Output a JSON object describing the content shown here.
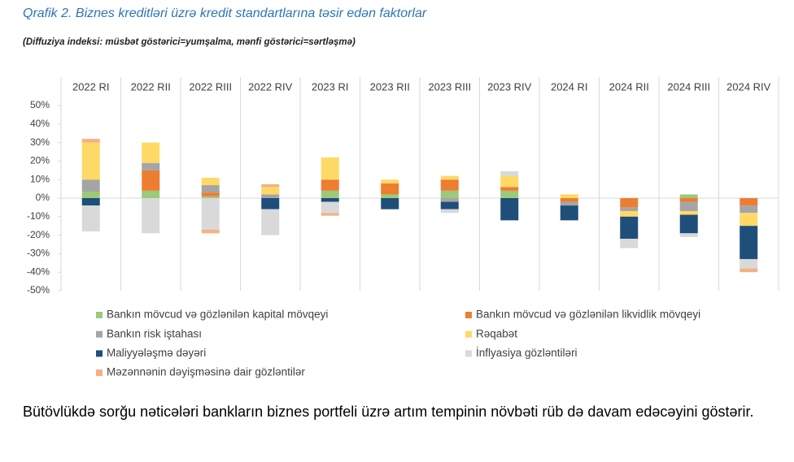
{
  "chart_data": {
    "type": "stacked_bar",
    "title": "Qrafik 2. Biznes kreditləri üzrə kredit standartlarına təsir edən faktorlar",
    "subtitle": "(Diffuziya indeksi: müsbət göstərici=yumşalma, mənfi göstərici=sərtləşmə)",
    "categories": [
      "2022 RI",
      "2022 RII",
      "2022 RIII",
      "2022 RIV",
      "2023 RI",
      "2023 RII",
      "2023 RIII",
      "2023 RIV",
      "2024 RI",
      "2024 RII",
      "2024 RIII",
      "2024 RIV"
    ],
    "series": [
      {
        "name": "Bankın mövcud və gözlənilən kapital mövqeyi",
        "color": "#9dc97b",
        "values": [
          3.5,
          4,
          1,
          0,
          4,
          2,
          4,
          4,
          0,
          0,
          2,
          0
        ]
      },
      {
        "name": "Bankın mövcud və gözlənilən likvidlik mövqeyi",
        "color": "#ed7d31",
        "values": [
          0,
          11,
          2,
          0,
          6,
          6,
          6,
          2,
          -2,
          -5,
          -2,
          -4
        ]
      },
      {
        "name": "Bankın risk iştahası",
        "color": "#a5a5a5",
        "values": [
          6.5,
          4,
          4,
          2,
          0,
          0,
          -2,
          0,
          -2,
          -2,
          -5,
          -4
        ]
      },
      {
        "name": "Rəqabət",
        "color": "#ffd966",
        "values": [
          20,
          11,
          4,
          4,
          12,
          2,
          2,
          6,
          2,
          -3,
          -2,
          -7
        ]
      },
      {
        "name": "Maliyyələşmə dəyəri",
        "color": "#1f4e79",
        "values": [
          -4,
          0,
          0,
          -6,
          -2,
          -6,
          -4,
          -12,
          -8,
          -12,
          -10,
          -18
        ]
      },
      {
        "name": "İnflyasiya gözləntiləri",
        "color": "#d9d9d9",
        "values": [
          -14,
          -19,
          -17,
          -14,
          -6,
          0,
          -2,
          2.5,
          0,
          -5,
          -2,
          -5
        ]
      },
      {
        "name": "Məzənnənin dəyişməsinə dair gözləntilər",
        "color": "#f4b183",
        "values": [
          2,
          0,
          -2,
          1.5,
          -1.5,
          0,
          0,
          0,
          0,
          0,
          0,
          -2
        ]
      }
    ],
    "ylim": [
      -50,
      50
    ],
    "yticks": [
      {
        "value": 50,
        "label": "50%"
      },
      {
        "value": 40,
        "label": "40%"
      },
      {
        "value": 30,
        "label": "30%"
      },
      {
        "value": 20,
        "label": "20%"
      },
      {
        "value": 10,
        "label": "10%"
      },
      {
        "value": 0,
        "label": "0%"
      },
      {
        "value": -10,
        "label": "-10%"
      },
      {
        "value": -20,
        "label": "-20%"
      },
      {
        "value": -30,
        "label": "-30%"
      },
      {
        "value": -40,
        "label": "-40%"
      },
      {
        "value": -50,
        "label": "-50%"
      }
    ],
    "grid": false
  },
  "paragraph": "Bütövlükdə sorğu nəticələri bankların biznes portfeli üzrə artım tempinin növbəti rüb də davam edəcəyini göstərir."
}
